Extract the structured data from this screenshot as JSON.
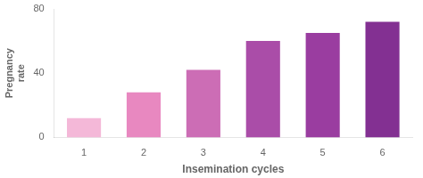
{
  "chart_data": {
    "type": "bar",
    "categories": [
      "1",
      "2",
      "3",
      "4",
      "5",
      "6"
    ],
    "values": [
      12,
      28,
      42,
      60,
      65,
      72
    ],
    "colors": [
      "#f4b8d8",
      "#e888c0",
      "#cc6db5",
      "#aa4da8",
      "#9a3da0",
      "#833092"
    ],
    "xlabel": "Insemination cycles",
    "ylabel": "Pregnancy\nrate",
    "ylim": [
      0,
      80
    ],
    "yticks": [
      0,
      40,
      80
    ],
    "grid": false
  }
}
